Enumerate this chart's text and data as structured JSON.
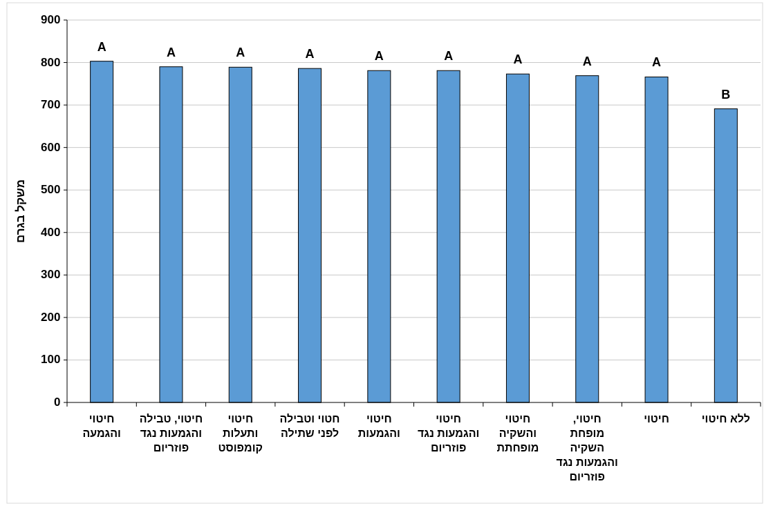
{
  "chart_data": {
    "type": "bar",
    "ylabel": "משקל בגרם",
    "categories": [
      "חיטוי והגמעה",
      "חיטוי, טבילה והגמעות נגד פוזריום",
      "חיטוי ותעלות קומפוסט",
      "חטוי וטבילה לפני שתילה",
      "חיטוי והגמעות",
      "חיטוי והגמעות נגד פוזריום",
      "חיטוי והשקיה מופחתת",
      "חיטוי, מופחת השקיה והגמעות נגד פוזריום",
      "חיטוי",
      "ללא חיטוי"
    ],
    "values": [
      803,
      790,
      789,
      786,
      781,
      781,
      773,
      769,
      766,
      691
    ],
    "color": "#5b9bd5",
    "ylim": [
      0,
      900
    ],
    "yticks": [
      0,
      100,
      200,
      300,
      400,
      500,
      600,
      700,
      800,
      900
    ],
    "grid": "y",
    "annotations": [
      {
        "text": "A",
        "x": "חיטוי והגמעה",
        "y": 803
      },
      {
        "text": "A",
        "x": "חיטוי, טבילה והגמעות נגד פוזריום",
        "y": 790
      },
      {
        "text": "A",
        "x": "חיטוי ותעלות קומפוסט",
        "y": 789
      },
      {
        "text": "A",
        "x": "חטוי וטבילה לפני שתילה",
        "y": 786
      },
      {
        "text": "A",
        "x": "חיטוי והגמעות",
        "y": 781
      },
      {
        "text": "A",
        "x": "חיטוי והגמעות נגד פוזריום",
        "y": 781
      },
      {
        "text": "A",
        "x": "חיטוי והשקיה מופחתת",
        "y": 773
      },
      {
        "text": "A",
        "x": "חיטוי, מופחת השקיה והגמעות נגד פוזריום",
        "y": 769
      },
      {
        "text": "A",
        "x": "חיטוי",
        "y": 766
      },
      {
        "text": "B",
        "x": "ללא חיטוי",
        "y": 691
      }
    ]
  }
}
